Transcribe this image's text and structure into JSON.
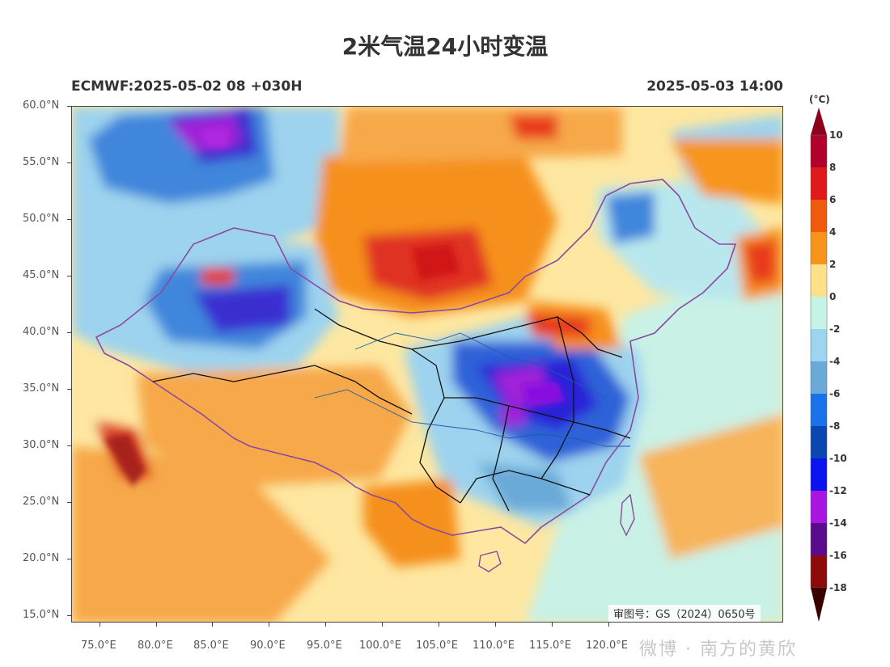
{
  "title": "2米气温24小时变温",
  "model_run": "ECMWF:2025-05-02 08 +030H",
  "valid_time": "2025-05-03 14:00",
  "approval_number": "审图号：GS（2024）0650号",
  "watermark": "微博 · 南方的黄欣",
  "lat_labels": [
    "60.0°N",
    "55.0°N",
    "50.0°N",
    "45.0°N",
    "40.0°N",
    "35.0°N",
    "30.0°N",
    "25.0°N",
    "20.0°N",
    "15.0°N"
  ],
  "lon_labels": [
    "75.0°E",
    "80.0°E",
    "85.0°E",
    "90.0°E",
    "95.0°E",
    "100.0°E",
    "105.0°E",
    "110.0°E",
    "115.0°E",
    "120.0°E"
  ],
  "colorbar": {
    "unit": "(°C)",
    "labels": [
      "10",
      "8",
      "6",
      "4",
      "2",
      "0",
      "-2",
      "-4",
      "-6",
      "-8",
      "-10",
      "-12",
      "-14",
      "-16",
      "-18"
    ],
    "colors": [
      "#b0022a",
      "#e01a1a",
      "#f05a0c",
      "#f7951b",
      "#fde08a",
      "#c5f3e6",
      "#9dd5f0",
      "#6aaad8",
      "#1a72e8",
      "#0a48b0",
      "#0a14ee",
      "#a814e0",
      "#5a0a8c",
      "#8c0a0a"
    ],
    "top_arrow_color": "#8c001c",
    "bottom_arrow_color": "#3a0000"
  }
}
